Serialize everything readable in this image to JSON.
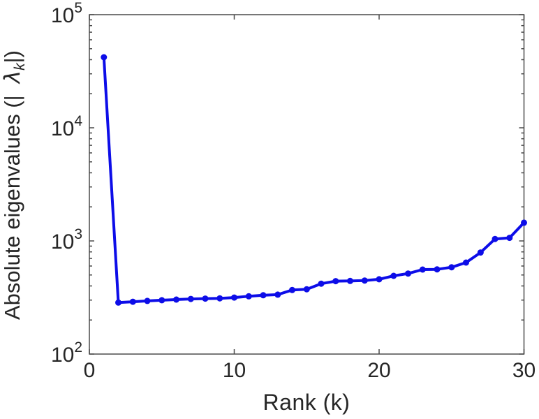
{
  "chart_data": {
    "type": "line",
    "title": "",
    "xlabel": "Rank (k)",
    "ylabel_parts": {
      "prefix": "Absolute eigenvalues (|",
      "lambda": "λ",
      "subscript": "k",
      "suffix": "|)"
    },
    "x": [
      1,
      2,
      3,
      4,
      5,
      6,
      7,
      8,
      9,
      10,
      11,
      12,
      13,
      14,
      15,
      16,
      17,
      18,
      19,
      20,
      21,
      22,
      23,
      24,
      25,
      26,
      27,
      28,
      29,
      30
    ],
    "values": [
      42000,
      285,
      290,
      295,
      299,
      303,
      307,
      309,
      311,
      316,
      324,
      331,
      335,
      368,
      374,
      419,
      441,
      443,
      447,
      458,
      491,
      515,
      558,
      561,
      585,
      644,
      790,
      1040,
      1065,
      1450
    ],
    "xlim": [
      0,
      30
    ],
    "x_ticks": [
      0,
      10,
      20,
      30
    ],
    "y_scale": "log",
    "y_tick_exponents": [
      2,
      3,
      4,
      5
    ],
    "y_tick_base": "10",
    "ylim": [
      100,
      100000
    ],
    "grid": false,
    "legend": "none",
    "marker": "filled-circle",
    "line_color": "#0d0de8",
    "axis_color": "#4a4a4a",
    "text_color": "#262626"
  }
}
